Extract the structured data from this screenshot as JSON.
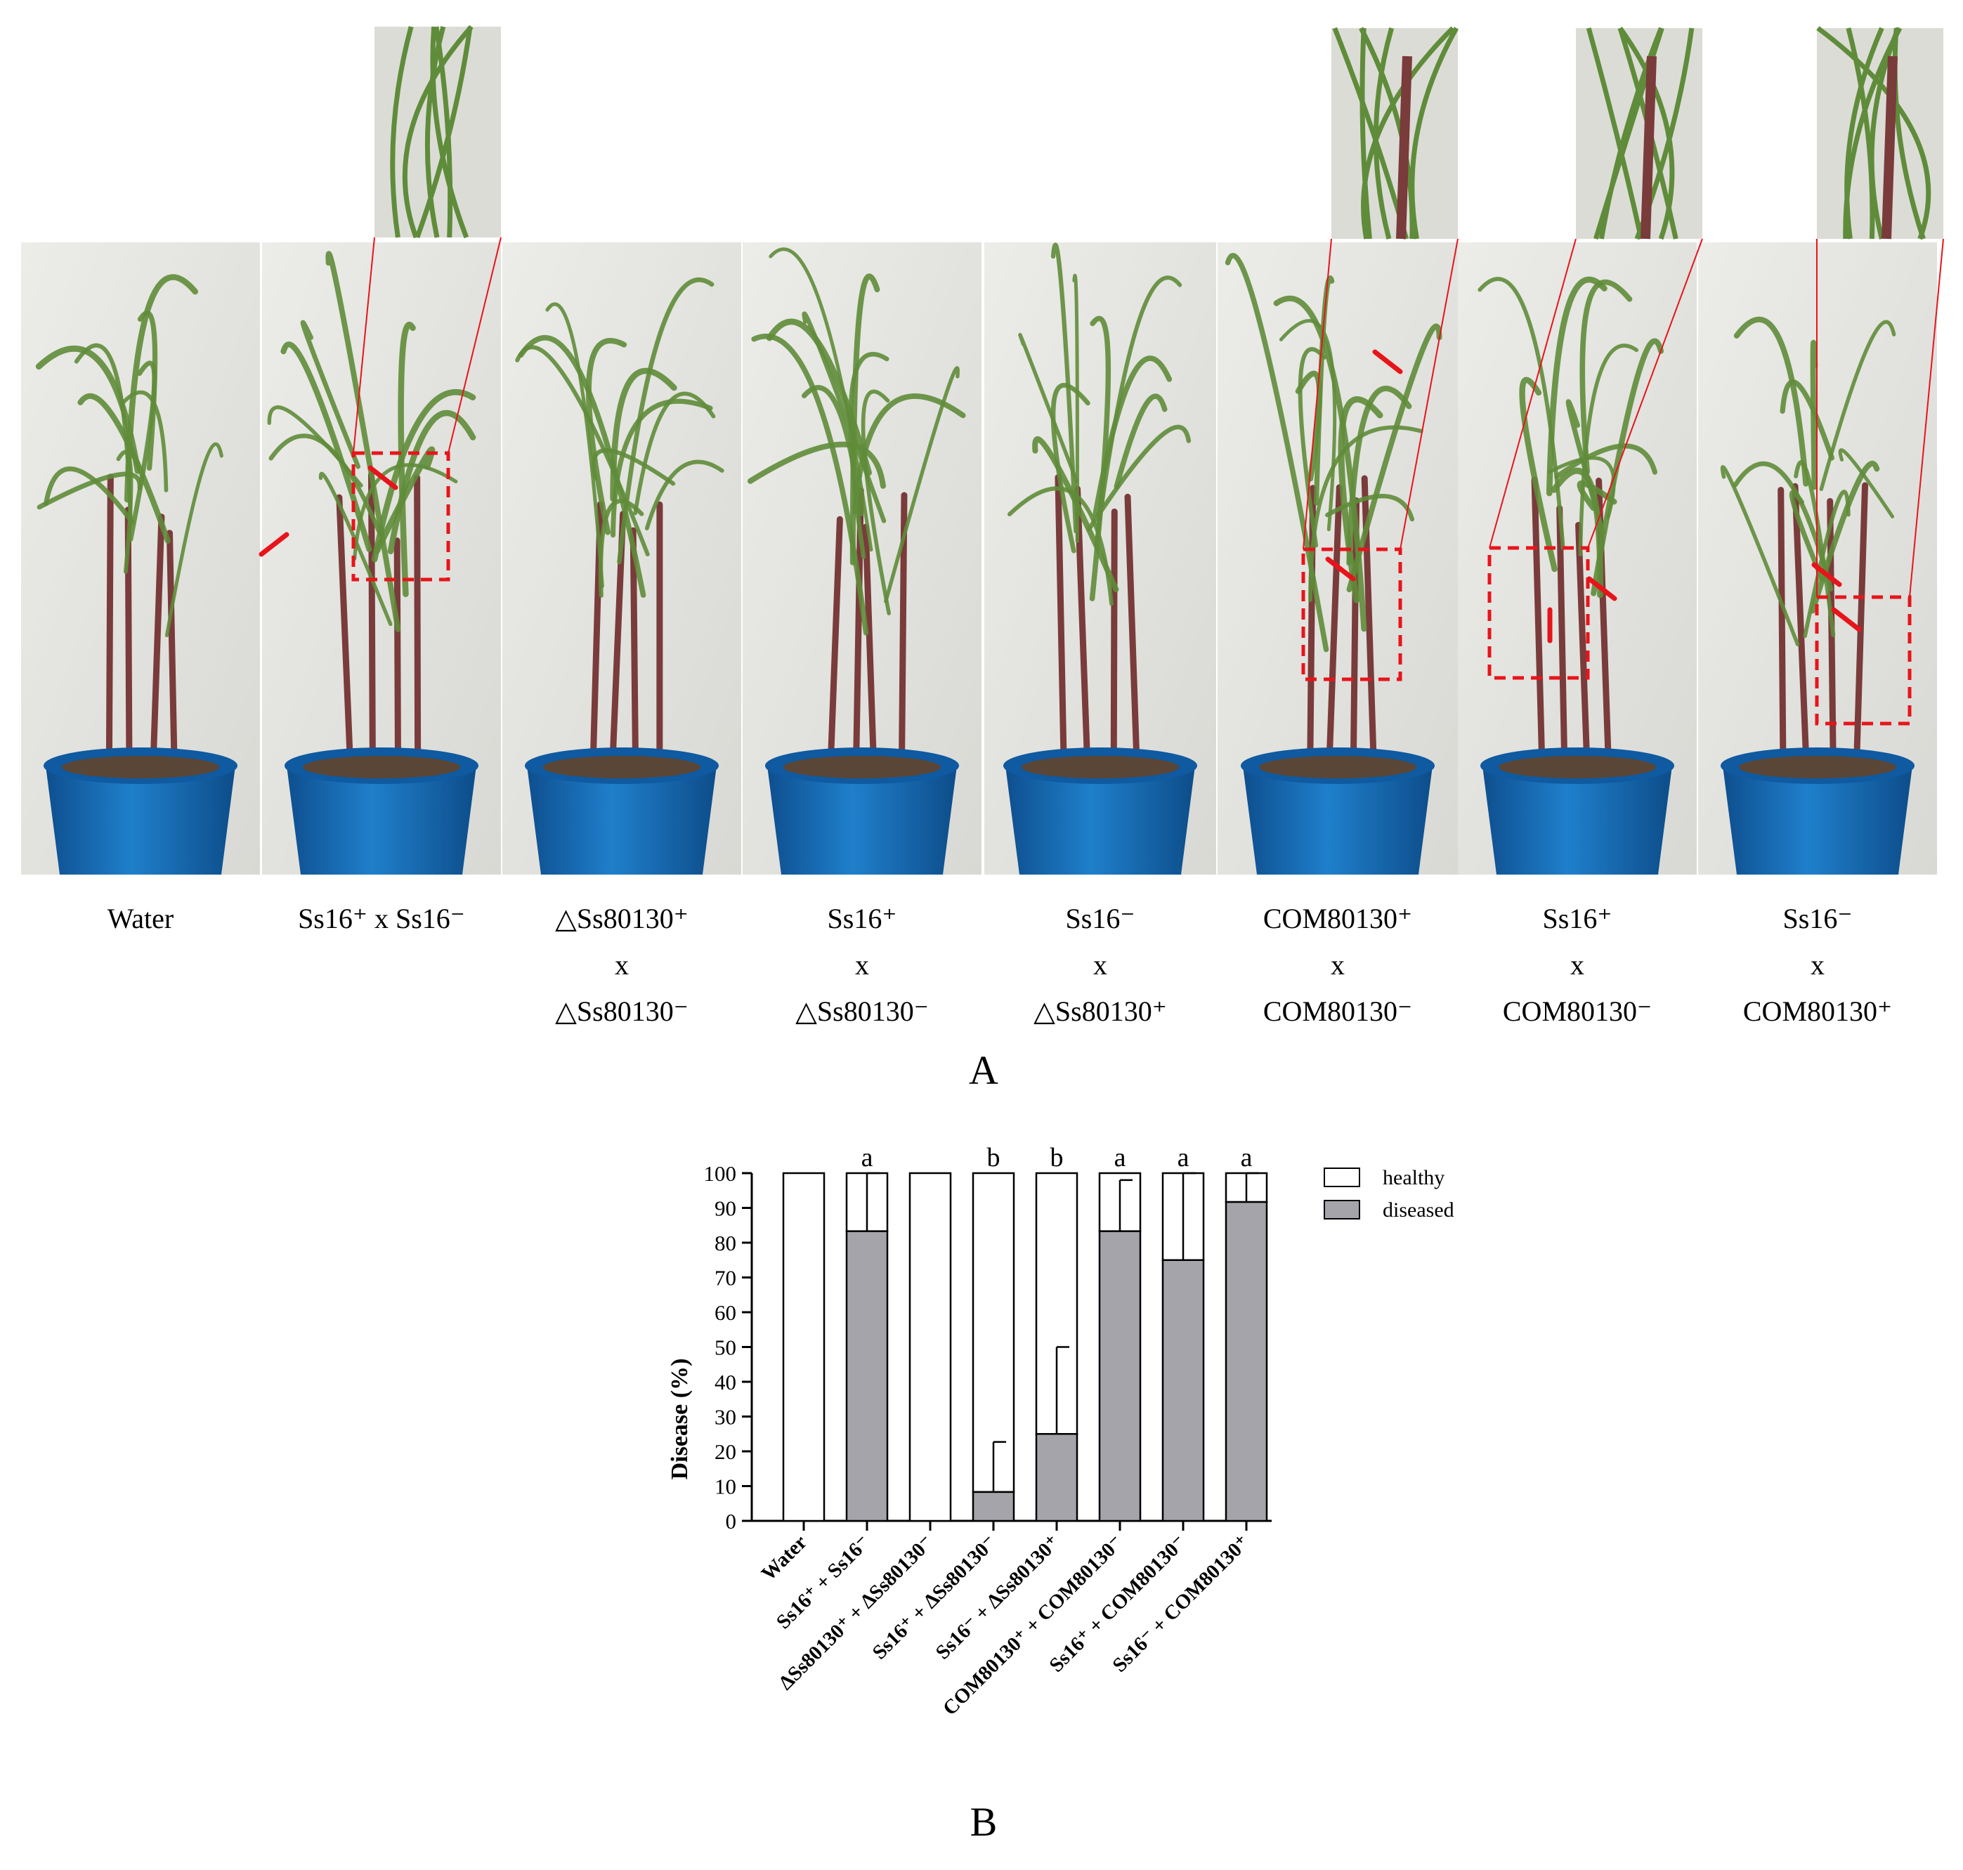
{
  "panel_a": {
    "letter": "A",
    "treatments": [
      {
        "lines": [
          "Water"
        ]
      },
      {
        "lines": [
          "Ss16⁺ x Ss16⁻"
        ]
      },
      {
        "lines": [
          "△Ss80130⁺",
          "x",
          "△Ss80130⁻"
        ]
      },
      {
        "lines": [
          "Ss16⁺",
          "x",
          "△Ss80130⁻"
        ]
      },
      {
        "lines": [
          "Ss16⁻",
          "x",
          "△Ss80130⁺"
        ]
      },
      {
        "lines": [
          "COM80130⁺",
          "x",
          "COM80130⁻"
        ]
      },
      {
        "lines": [
          "Ss16⁺",
          "x",
          "COM80130⁻"
        ]
      },
      {
        "lines": [
          "Ss16⁻",
          "x",
          "COM80130⁺"
        ]
      }
    ],
    "colors": {
      "background": "#e6e6e2",
      "pot": "#1a6fb8",
      "leaf": "#5f8c3a",
      "stem": "#7a3b3b",
      "marker": "#e8141b"
    }
  },
  "panel_b": {
    "letter": "B"
  },
  "chart_data": {
    "type": "bar",
    "stacked": true,
    "categories": [
      "Water",
      "Ss16⁺ + Ss16⁻",
      "∆Ss80130⁺ + ∆Ss80130⁻",
      "Ss16⁺ + ∆Ss80130⁻",
      "Ss16⁻ + ∆Ss80130⁺",
      "COM80130⁺ + COM80130⁻",
      "Ss16⁺ + COM80130⁻",
      "Ss16⁻ + COM80130⁺"
    ],
    "series": [
      {
        "name": "diseased",
        "color": "#a6a4ab",
        "values": [
          0,
          83.3,
          0,
          8.3,
          25,
          83.3,
          75,
          91.7
        ]
      },
      {
        "name": "healthy",
        "color": "#ffffff",
        "values": [
          100,
          16.7,
          100,
          91.7,
          75,
          16.7,
          25,
          8.3
        ]
      }
    ],
    "error_upper": [
      null,
      100,
      null,
      22.7,
      50,
      98,
      100,
      100
    ],
    "significance": [
      "",
      "a",
      "",
      "b",
      "b",
      "a",
      "a",
      "a"
    ],
    "ylabel": "Disease (%)",
    "ylim": [
      0,
      100
    ],
    "yticks": [
      0,
      10,
      20,
      30,
      40,
      50,
      60,
      70,
      80,
      90,
      100
    ],
    "legend": [
      "healthy",
      "diseased"
    ],
    "legend_position": "top-right"
  }
}
